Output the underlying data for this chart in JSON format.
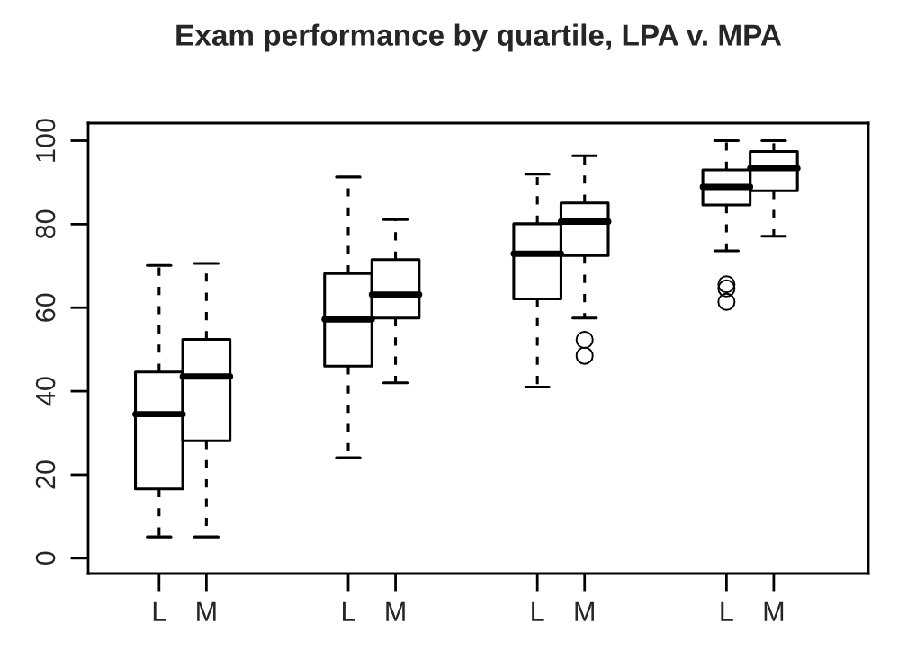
{
  "chart_data": {
    "type": "box",
    "title": "Exam performance by quartile, LPA v. MPA",
    "categories": [
      "L",
      "M",
      "L",
      "M",
      "L",
      "M",
      "L",
      "M"
    ],
    "boxes": [
      {
        "low": 5.1,
        "q1": 16.6,
        "median": 34.5,
        "q3": 44.6,
        "high": 70.1
      },
      {
        "low": 5.1,
        "q1": 28.1,
        "median": 43.5,
        "q3": 52.4,
        "high": 70.6
      },
      {
        "low": 24.1,
        "q1": 46.0,
        "median": 57.2,
        "q3": 68.2,
        "high": 91.3
      },
      {
        "low": 42.0,
        "q1": 57.5,
        "median": 63.1,
        "q3": 71.5,
        "high": 81.1
      },
      {
        "low": 41.0,
        "q1": 62.1,
        "median": 72.9,
        "q3": 80.1,
        "high": 92.0
      },
      {
        "low": 57.5,
        "q1": 72.5,
        "median": 80.6,
        "q3": 85.1,
        "high": 96.4,
        "outliers": [
          52.3,
          48.5
        ]
      },
      {
        "low": 73.6,
        "q1": 84.6,
        "median": 88.9,
        "q3": 93.0,
        "high": 100,
        "outliers": [
          65.6,
          64.6,
          61.4
        ]
      },
      {
        "low": 77.1,
        "q1": 88.0,
        "median": 93.4,
        "q3": 97.4,
        "high": 100
      }
    ],
    "ylim": [
      -3.7,
      104.2
    ],
    "yticks": [
      0,
      20,
      40,
      60,
      80,
      100
    ],
    "grid": false
  }
}
